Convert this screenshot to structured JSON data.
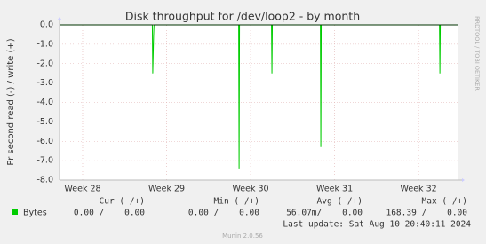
{
  "chart_data": {
    "type": "line",
    "title": "Disk throughput for /dev/loop2 - by month",
    "y_label": "Pr second read (-) / write (+)",
    "watermark": "RRDTOOL / TOBI OETIKER",
    "x": [
      27.73,
      28.83,
      28.835,
      28.845,
      28.85,
      29.858,
      29.863,
      29.868,
      30.249,
      30.254,
      30.259,
      30.831,
      30.836,
      30.841,
      32.249,
      32.254,
      32.259,
      32.47
    ],
    "series": [
      {
        "name": "Bytes",
        "color": "#00cc00",
        "values": [
          0,
          0,
          -2.5,
          -0.6,
          0,
          0,
          -7.4,
          0,
          0,
          -2.5,
          0,
          0,
          -6.3,
          0,
          0,
          -2.5,
          0,
          0
        ]
      }
    ],
    "xlim": [
      27.725,
      32.475
    ],
    "xticks": [
      {
        "value": 28,
        "label": "Week 28"
      },
      {
        "value": 29,
        "label": "Week 29"
      },
      {
        "value": 30,
        "label": "Week 30"
      },
      {
        "value": 31,
        "label": "Week 31"
      },
      {
        "value": 32,
        "label": "Week 32"
      }
    ],
    "ylim": [
      -8,
      0
    ],
    "yticks": [
      {
        "value": 0,
        "label": "0.0"
      },
      {
        "value": -1,
        "label": "-1.0"
      },
      {
        "value": -2,
        "label": "-2.0"
      },
      {
        "value": -3,
        "label": "-3.0"
      },
      {
        "value": -4,
        "label": "-4.0"
      },
      {
        "value": -5,
        "label": "-5.0"
      },
      {
        "value": -6,
        "label": "-6.0"
      },
      {
        "value": -7,
        "label": "-7.0"
      },
      {
        "value": -8,
        "label": "-8.0"
      }
    ],
    "grid": true,
    "legend_table": {
      "headers": [
        "Cur (-/+)",
        "Min (-/+)",
        "Avg (-/+)",
        "Max (-/+)"
      ],
      "values": [
        "0.00 /    0.00",
        "0.00 /    0.00",
        "56.07m/    0.00",
        "168.39 /    0.00"
      ]
    },
    "last_update": "Last update: Sat Aug 10 20:40:11 2024",
    "footer": "Munin 2.0.56"
  }
}
